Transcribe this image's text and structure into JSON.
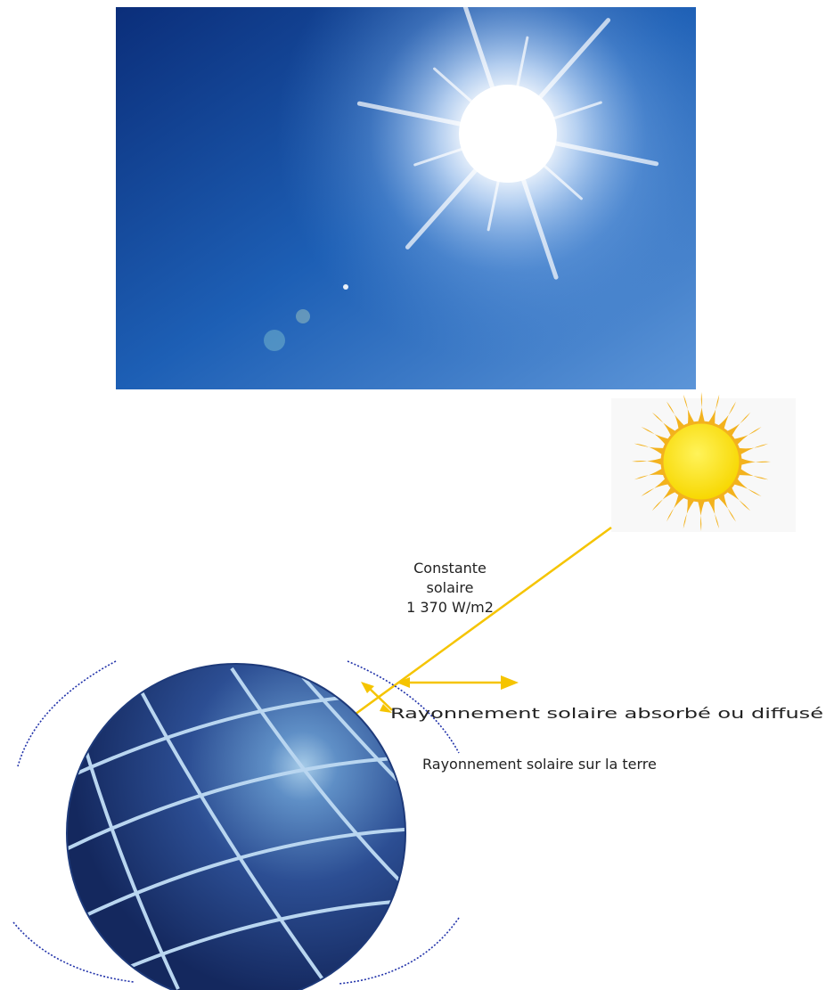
{
  "diagram": {
    "solar_constant": {
      "lines": [
        "Constante",
        "solaire",
        "1 370 W/m2"
      ]
    },
    "labels": {
      "absorbed": "Rayonnement solaire absorbé ou diffusé",
      "earth": "Rayonnement solaire sur la terre"
    }
  }
}
